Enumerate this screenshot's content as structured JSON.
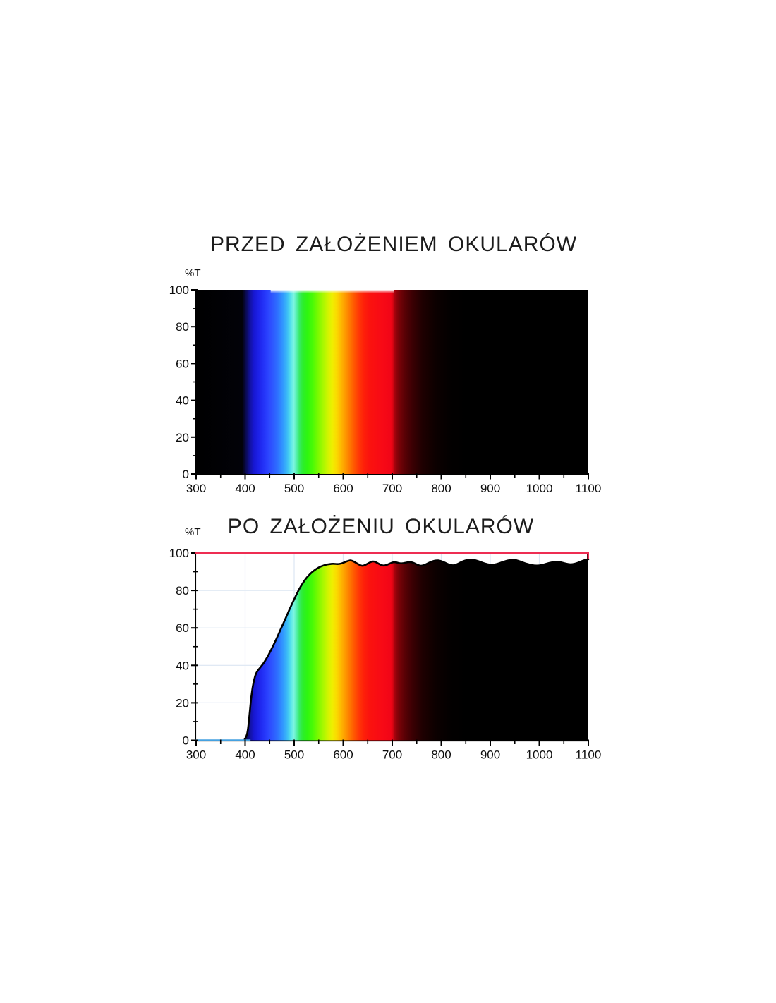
{
  "style": {
    "background": "#ffffff",
    "title_color": "#1c1c1c",
    "axis_color": "#000000",
    "tick_label_color": "#0d0d0d",
    "grid_color": "#dce6f2",
    "red_line_color": "#ee2d52",
    "blue_line_color": "#45a1e0",
    "spectrum_stops": [
      [
        300,
        "#000000"
      ],
      [
        394,
        "#020208"
      ],
      [
        402,
        "#0a0a52"
      ],
      [
        410,
        "#12129e"
      ],
      [
        418,
        "#1717d2"
      ],
      [
        428,
        "#1d22ea"
      ],
      [
        438,
        "#2433f8"
      ],
      [
        448,
        "#2c46ff"
      ],
      [
        456,
        "#2e57ff"
      ],
      [
        466,
        "#2e70ff"
      ],
      [
        476,
        "#3194ff"
      ],
      [
        485,
        "#3ab9f7"
      ],
      [
        493,
        "#55e3ea"
      ],
      [
        499,
        "#7ef5e3"
      ],
      [
        505,
        "#55f0ac"
      ],
      [
        511,
        "#37ea62"
      ],
      [
        518,
        "#2cee2c"
      ],
      [
        527,
        "#2ef60f"
      ],
      [
        537,
        "#48fa06"
      ],
      [
        548,
        "#78f900"
      ],
      [
        559,
        "#a8f800"
      ],
      [
        569,
        "#d2f400"
      ],
      [
        578,
        "#f0ee00"
      ],
      [
        587,
        "#fbd800"
      ],
      [
        596,
        "#feb600"
      ],
      [
        605,
        "#fe9700"
      ],
      [
        614,
        "#fe7600"
      ],
      [
        623,
        "#ff5501"
      ],
      [
        632,
        "#ff3806"
      ],
      [
        642,
        "#fe2009"
      ],
      [
        653,
        "#fb130e"
      ],
      [
        666,
        "#f90e12"
      ],
      [
        682,
        "#f70916"
      ],
      [
        697,
        "#f10517"
      ],
      [
        701,
        "#dd0413"
      ],
      [
        705,
        "#a6030d"
      ],
      [
        713,
        "#7c0208"
      ],
      [
        725,
        "#5a0105"
      ],
      [
        741,
        "#3b0003"
      ],
      [
        762,
        "#1e0001"
      ],
      [
        788,
        "#0c0000"
      ],
      [
        818,
        "#030000"
      ],
      [
        850,
        "#000000"
      ],
      [
        1100,
        "#000000"
      ]
    ]
  },
  "chart_data": [
    {
      "id": "before",
      "type": "area",
      "title": "PRZED ZAŁOŻENIEM OKULARÓW",
      "xlabel": "",
      "ylabel": "%T",
      "xlim": [
        300,
        1100
      ],
      "ylim": [
        0,
        100
      ],
      "x_major_ticks": [
        300,
        400,
        500,
        600,
        700,
        800,
        900,
        1000,
        1100
      ],
      "x_minor_step": 50,
      "y_major_ticks": [
        0,
        20,
        40,
        60,
        80,
        100
      ],
      "y_minor_step": 10,
      "grid": false,
      "spectrum_fill": true,
      "overlays": {
        "white_glow": {
          "x_from": 452,
          "x_to": 703
        }
      },
      "series": [
        {
          "name": "transmission-before-glasses",
          "outline": false,
          "points": [
            [
              300,
              100
            ],
            [
              1100,
              100
            ]
          ]
        }
      ]
    },
    {
      "id": "after",
      "type": "area",
      "title": "PO ZAŁOŻENIU OKULARÓW",
      "xlabel": "",
      "ylabel": "%T",
      "xlim": [
        300,
        1100
      ],
      "ylim": [
        0,
        100
      ],
      "x_major_ticks": [
        300,
        400,
        500,
        600,
        700,
        800,
        900,
        1000,
        1100
      ],
      "x_minor_step": 50,
      "y_major_ticks": [
        0,
        20,
        40,
        60,
        80,
        100
      ],
      "y_minor_step": 10,
      "grid": true,
      "spectrum_fill": true,
      "overlays": {
        "red_line_y": 100,
        "blue_line": {
          "y": 0,
          "x_from": 300,
          "x_to": 411
        }
      },
      "series": [
        {
          "name": "transmission-after-glasses",
          "outline": true,
          "points": [
            [
              300,
              0
            ],
            [
              350,
              0
            ],
            [
              390,
              0
            ],
            [
              399,
              0.5
            ],
            [
              403,
              2
            ],
            [
              406,
              6
            ],
            [
              409,
              14
            ],
            [
              412,
              22
            ],
            [
              415,
              28
            ],
            [
              418,
              32
            ],
            [
              421,
              35
            ],
            [
              425,
              37
            ],
            [
              430,
              38.6
            ],
            [
              436,
              40.5
            ],
            [
              442,
              43
            ],
            [
              448,
              45.7
            ],
            [
              454,
              48.8
            ],
            [
              460,
              52
            ],
            [
              466,
              55.4
            ],
            [
              472,
              59
            ],
            [
              478,
              62.4
            ],
            [
              484,
              66
            ],
            [
              490,
              69.6
            ],
            [
              496,
              73
            ],
            [
              502,
              76.4
            ],
            [
              508,
              79.6
            ],
            [
              514,
              82.4
            ],
            [
              520,
              84.9
            ],
            [
              526,
              87
            ],
            [
              532,
              88.7
            ],
            [
              538,
              90.1
            ],
            [
              544,
              91.3
            ],
            [
              551,
              92.4
            ],
            [
              558,
              93.2
            ],
            [
              565,
              93.8
            ],
            [
              572,
              94.1
            ],
            [
              580,
              94.3
            ],
            [
              588,
              94.0
            ],
            [
              596,
              94.3
            ],
            [
              604,
              95.2
            ],
            [
              611,
              95.9
            ],
            [
              616,
              96.1
            ],
            [
              622,
              95.4
            ],
            [
              629,
              94.3
            ],
            [
              636,
              93.3
            ],
            [
              641,
              93.1
            ],
            [
              648,
              94.0
            ],
            [
              655,
              95.1
            ],
            [
              661,
              95.6
            ],
            [
              667,
              95.1
            ],
            [
              674,
              94.0
            ],
            [
              681,
              93.2
            ],
            [
              688,
              93.5
            ],
            [
              695,
              94.4
            ],
            [
              702,
              95.1
            ],
            [
              709,
              95.0
            ],
            [
              716,
              94.4
            ],
            [
              723,
              94.5
            ],
            [
              730,
              95.0
            ],
            [
              737,
              95.2
            ],
            [
              744,
              94.7
            ],
            [
              751,
              93.7
            ],
            [
              758,
              93.1
            ],
            [
              765,
              93.5
            ],
            [
              773,
              94.5
            ],
            [
              782,
              95.6
            ],
            [
              790,
              96.1
            ],
            [
              798,
              95.9
            ],
            [
              807,
              94.9
            ],
            [
              815,
              93.9
            ],
            [
              823,
              93.3
            ],
            [
              831,
              93.8
            ],
            [
              839,
              94.9
            ],
            [
              848,
              96.0
            ],
            [
              857,
              96.5
            ],
            [
              866,
              96.4
            ],
            [
              875,
              95.7
            ],
            [
              885,
              94.7
            ],
            [
              895,
              93.9
            ],
            [
              905,
              93.6
            ],
            [
              915,
              94.2
            ],
            [
              925,
              95.2
            ],
            [
              935,
              96.0
            ],
            [
              944,
              96.4
            ],
            [
              953,
              96.2
            ],
            [
              962,
              95.4
            ],
            [
              971,
              94.5
            ],
            [
              980,
              93.8
            ],
            [
              990,
              93.3
            ],
            [
              1000,
              93.3
            ],
            [
              1010,
              93.9
            ],
            [
              1020,
              94.7
            ],
            [
              1030,
              95.2
            ],
            [
              1039,
              95.3
            ],
            [
              1048,
              94.8
            ],
            [
              1056,
              94.2
            ],
            [
              1064,
              93.9
            ],
            [
              1072,
              94.2
            ],
            [
              1080,
              94.9
            ],
            [
              1088,
              95.8
            ],
            [
              1095,
              96.4
            ],
            [
              1100,
              96.7
            ]
          ]
        }
      ]
    }
  ]
}
